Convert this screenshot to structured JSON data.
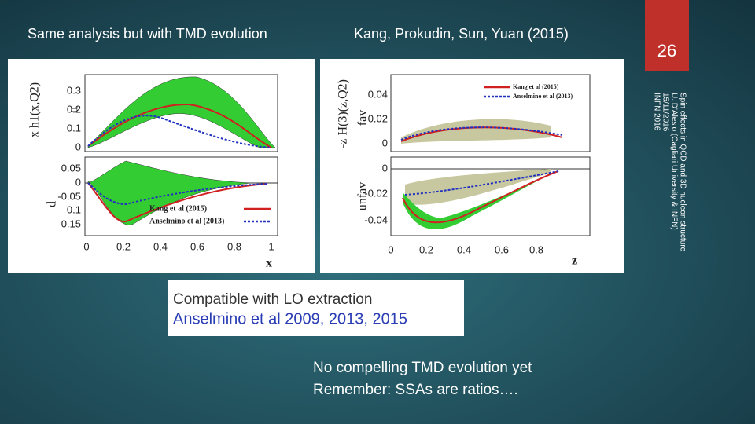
{
  "header": {
    "left_title": "Same analysis but with TMD evolution",
    "right_title": "Kang, Prokudin, Sun, Yuan (2015)"
  },
  "slide_number": "26",
  "side_note": [
    "Spin effects in QCD and 3D nucleon structure",
    "U. D'Alesio (Cagliari University & INFN)",
    "15/11/2016",
    "INFN 2016"
  ],
  "figure_left": {
    "y_label": "x h1(x,Q2)",
    "top_panel": "u",
    "bottom_panel": "d",
    "top_ticks": [
      "0.3",
      "0.2",
      "0.1",
      "0"
    ],
    "bottom_ticks": [
      "0.05",
      "0",
      "-0.05",
      "0.1",
      "0.15"
    ],
    "x_ticks": [
      "0",
      "0.2",
      "0.4",
      "0.6",
      "0.8",
      "1"
    ],
    "x_label": "x",
    "legend": [
      "Kang et al (2015)",
      "Anselmino et al (2013)"
    ]
  },
  "figure_right": {
    "y_label": "-z H(3)(z,Q2)",
    "top_panel": "fav",
    "bottom_panel": "unfav",
    "top_ticks": [
      "0.04",
      "0.02",
      "0"
    ],
    "bottom_ticks": [
      "0",
      "-0.02",
      "-0.04"
    ],
    "x_ticks": [
      "0",
      "0.2",
      "0.4",
      "0.6",
      "0.8"
    ],
    "x_label": "z",
    "legend": [
      "Kang et al (2015)",
      "Anselmino et al (2013)"
    ]
  },
  "callout": [
    "Compatible with LO extraction",
    "Anselmino et al 2009, 2013, 2015"
  ],
  "conclusion": [
    "No compelling TMD evolution yet",
    "Remember: SSAs are ratios…."
  ]
}
